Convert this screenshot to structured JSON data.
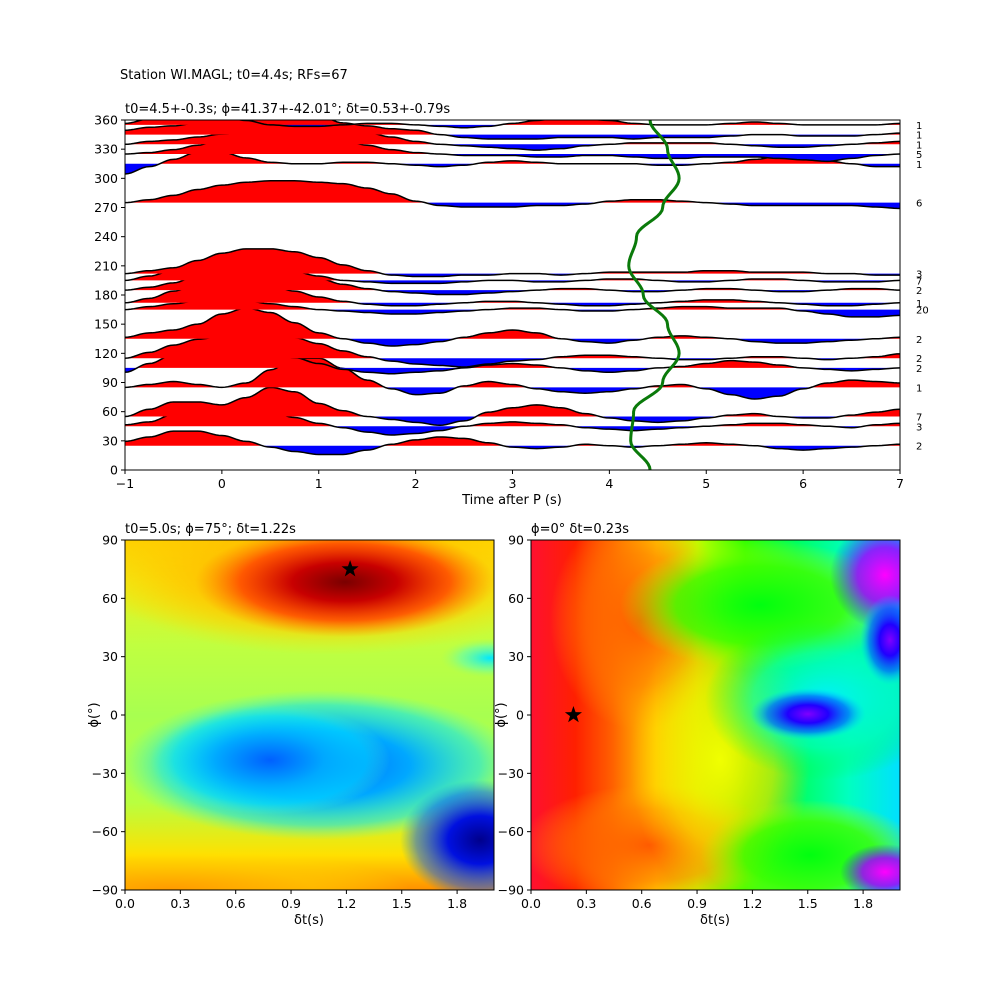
{
  "figure": {
    "suptitle": "Station WI.MAGL; t0=4.4s; RFs=67"
  },
  "chart_data": [
    {
      "type": "line",
      "title": "t0=4.5+-0.3s; ϕ=41.37+-42.01°; δt=0.53+-0.79s",
      "xlabel": "Time after P (s)",
      "ylabel": "",
      "xlim": [
        -1,
        7
      ],
      "ylim": [
        0,
        360
      ],
      "xticks": [
        "−1",
        "0",
        "1",
        "2",
        "3",
        "4",
        "5",
        "6",
        "7"
      ],
      "yticks": [
        "0",
        "30",
        "60",
        "90",
        "120",
        "150",
        "180",
        "210",
        "240",
        "270",
        "300",
        "330",
        "360"
      ],
      "fill_positive_color": "#ff0000",
      "fill_negative_color": "#0000ff",
      "trace_color": "#000000",
      "curve_color": "#0a7a0a",
      "traces": [
        {
          "baz": 25,
          "count": "2",
          "amp": [
            0.3,
            0.6,
            1.0,
            1.0,
            0.7,
            0.3,
            -0.1,
            -0.4,
            -0.6,
            -0.6,
            -0.3,
            0.1,
            0.4,
            0.6,
            0.5,
            0.2,
            -0.1,
            -0.2,
            -0.1,
            0.1,
            0.0,
            -0.1,
            0.0,
            0.1,
            0.2,
            0.1,
            0.0,
            -0.2,
            -0.3,
            -0.2,
            -0.1,
            0.0,
            0.1
          ]
        },
        {
          "baz": 45,
          "count": "3",
          "amp": [
            0.1,
            0.3,
            0.8,
            1.1,
            1.2,
            1.2,
            1.0,
            0.6,
            0.2,
            -0.1,
            -0.4,
            -0.6,
            -0.5,
            -0.3,
            0.0,
            0.2,
            0.3,
            0.2,
            0.1,
            -0.1,
            -0.2,
            -0.3,
            -0.2,
            -0.1,
            0.0,
            0.1,
            0.2,
            0.2,
            0.1,
            0.0,
            -0.1,
            0.1,
            0.2
          ]
        },
        {
          "baz": 55,
          "count": "7",
          "amp": [
            0.0,
            0.5,
            1.0,
            1.0,
            0.8,
            1.3,
            2.0,
            1.7,
            0.9,
            0.4,
            0.0,
            -0.2,
            -0.4,
            -0.6,
            -0.3,
            0.3,
            0.6,
            0.8,
            0.6,
            0.2,
            -0.1,
            -0.3,
            -0.4,
            -0.3,
            -0.1,
            0.1,
            0.2,
            0.0,
            -0.1,
            -0.1,
            0.1,
            0.3,
            0.5
          ]
        },
        {
          "baz": 85,
          "count": "1",
          "amp": [
            0.0,
            0.2,
            0.4,
            0.2,
            0.0,
            0.3,
            1.2,
            2.0,
            2.0,
            1.3,
            0.5,
            -0.1,
            -0.5,
            -0.4,
            0.1,
            0.4,
            0.2,
            -0.1,
            -0.3,
            -0.4,
            -0.3,
            -0.1,
            0.1,
            0.2,
            -0.1,
            -0.5,
            -0.8,
            -0.6,
            -0.1,
            0.3,
            0.5,
            0.4,
            0.3
          ]
        },
        {
          "baz": 105,
          "count": "2",
          "amp": [
            -0.3,
            0.3,
            0.9,
            1.4,
            1.5,
            1.4,
            1.1,
            0.7,
            0.3,
            -0.1,
            -0.3,
            -0.4,
            -0.3,
            -0.2,
            0.0,
            0.2,
            0.3,
            0.2,
            0.0,
            -0.2,
            -0.3,
            -0.2,
            0.0,
            0.1,
            0.3,
            0.5,
            0.4,
            0.2,
            0.0,
            -0.1,
            -0.2,
            -0.1,
            0.0
          ]
        },
        {
          "baz": 115,
          "count": "2",
          "amp": [
            0.0,
            0.4,
            0.9,
            1.3,
            1.5,
            1.6,
            1.6,
            1.4,
            1.0,
            0.5,
            0.1,
            -0.2,
            -0.4,
            -0.5,
            -0.6,
            -0.4,
            -0.2,
            -0.1,
            0.1,
            0.2,
            0.2,
            0.1,
            0.0,
            -0.1,
            -0.1,
            0.0,
            0.1,
            0.1,
            0.0,
            -0.1,
            0.0,
            0.1,
            0.3
          ]
        },
        {
          "baz": 135,
          "count": "2",
          "amp": [
            0.1,
            0.4,
            0.6,
            1.0,
            1.7,
            2.1,
            1.8,
            1.1,
            0.4,
            0.0,
            -0.3,
            -0.5,
            -0.4,
            -0.2,
            0.1,
            0.4,
            0.6,
            0.4,
            0.0,
            -0.2,
            -0.3,
            -0.1,
            0.1,
            0.2,
            0.1,
            0.0,
            -0.2,
            -0.3,
            -0.3,
            -0.2,
            -0.1,
            0.0,
            0.1
          ]
        },
        {
          "baz": 165,
          "count": "20",
          "amp": [
            0.0,
            0.2,
            0.4,
            0.6,
            0.7,
            0.6,
            0.4,
            0.2,
            0.0,
            -0.1,
            -0.2,
            -0.3,
            -0.3,
            -0.2,
            -0.1,
            0.0,
            0.1,
            0.1,
            0.0,
            -0.1,
            -0.1,
            0.0,
            0.1,
            0.2,
            0.2,
            0.1,
            0.1,
            0.1,
            -0.1,
            -0.3,
            -0.5,
            -0.5,
            -0.4
          ]
        },
        {
          "baz": 172,
          "count": "1",
          "amp": [
            0.0,
            0.3,
            0.8,
            1.3,
            1.6,
            1.5,
            1.2,
            0.8,
            0.4,
            0.1,
            -0.1,
            -0.2,
            -0.2,
            -0.1,
            0.0,
            0.1,
            0.1,
            0.0,
            -0.1,
            -0.2,
            -0.2,
            -0.1,
            0.0,
            0.1,
            0.2,
            0.2,
            0.1,
            0.0,
            -0.1,
            -0.2,
            -0.2,
            -0.1,
            0.0
          ]
        },
        {
          "baz": 185,
          "count": "2",
          "amp": [
            0.0,
            0.2,
            0.5,
            1.0,
            1.4,
            1.6,
            1.5,
            1.2,
            0.8,
            0.4,
            0.1,
            -0.1,
            -0.2,
            -0.3,
            -0.3,
            -0.2,
            -0.1,
            0.0,
            0.1,
            0.1,
            0.0,
            -0.1,
            -0.1,
            0.0,
            0.1,
            0.1,
            0.0,
            -0.1,
            -0.1,
            0.0,
            0.1,
            0.1,
            0.0
          ]
        },
        {
          "baz": 195,
          "count": "7",
          "amp": [
            0.0,
            0.3,
            0.7,
            1.1,
            1.4,
            1.3,
            1.0,
            0.6,
            0.3,
            0.0,
            -0.1,
            -0.2,
            -0.2,
            -0.2,
            -0.1,
            0.0,
            0.0,
            -0.1,
            -0.1,
            0.0,
            0.1,
            0.1,
            0.0,
            -0.1,
            -0.1,
            0.0,
            0.1,
            0.1,
            0.0,
            -0.1,
            -0.1,
            -0.1,
            0.0
          ]
        },
        {
          "baz": 202,
          "count": "3",
          "amp": [
            0.0,
            0.2,
            0.4,
            0.9,
            1.4,
            1.7,
            1.7,
            1.5,
            1.1,
            0.6,
            0.2,
            -0.1,
            -0.2,
            -0.2,
            -0.1,
            -0.1,
            0.0,
            0.0,
            -0.1,
            0.0,
            0.1,
            0.1,
            0.1,
            0.1,
            0.2,
            0.2,
            0.1,
            0.1,
            0.1,
            0.0,
            0.0,
            -0.1,
            -0.1
          ]
        },
        {
          "baz": 275,
          "count": "6",
          "amp": [
            0.0,
            0.2,
            0.5,
            0.9,
            1.2,
            1.4,
            1.5,
            1.5,
            1.4,
            1.3,
            1.0,
            0.6,
            0.1,
            -0.2,
            -0.3,
            -0.3,
            -0.3,
            -0.2,
            -0.2,
            -0.1,
            0.1,
            0.2,
            0.2,
            0.1,
            0.0,
            -0.1,
            -0.2,
            -0.2,
            -0.2,
            -0.2,
            -0.2,
            -0.3,
            -0.4
          ]
        },
        {
          "baz": 315,
          "count": "1",
          "amp": [
            -0.7,
            -0.2,
            0.3,
            0.8,
            0.8,
            0.4,
            0.1,
            0.0,
            0.0,
            0.1,
            0.1,
            0.0,
            -0.1,
            -0.2,
            -0.1,
            0.1,
            0.2,
            0.1,
            0.0,
            0.0,
            0.0,
            0.0,
            -0.1,
            -0.1,
            0.0,
            0.1,
            0.3,
            0.5,
            0.4,
            0.2,
            0.0,
            -0.2,
            -0.2
          ]
        },
        {
          "baz": 325,
          "count": "5",
          "amp": [
            0.0,
            0.1,
            0.3,
            0.6,
            1.1,
            1.6,
            2.0,
            1.8,
            1.4,
            1.0,
            0.6,
            0.3,
            0.1,
            0.0,
            -0.1,
            -0.1,
            -0.1,
            -0.2,
            -0.2,
            -0.1,
            -0.1,
            -0.2,
            -0.3,
            -0.3,
            -0.2,
            -0.2,
            -0.2,
            -0.3,
            -0.4,
            -0.5,
            -0.3,
            -0.1,
            0.0
          ]
        },
        {
          "baz": 335,
          "count": "1",
          "amp": [
            0.0,
            0.2,
            0.3,
            0.5,
            0.7,
            0.8,
            0.9,
            1.0,
            1.1,
            1.0,
            0.8,
            0.5,
            0.2,
            0.0,
            -0.1,
            -0.2,
            -0.3,
            -0.4,
            -0.3,
            -0.1,
            0.0,
            0.1,
            0.1,
            0.1,
            0.1,
            0.0,
            -0.1,
            -0.2,
            -0.2,
            -0.1,
            0.0,
            0.1,
            0.2
          ]
        },
        {
          "baz": 345,
          "count": "1",
          "amp": [
            0.3,
            0.5,
            0.6,
            0.8,
            1.3,
            1.9,
            2.2,
            1.9,
            1.3,
            0.8,
            0.6,
            0.4,
            0.3,
            0.0,
            -0.2,
            -0.3,
            -0.3,
            -0.3,
            -0.2,
            -0.2,
            -0.2,
            -0.3,
            -0.2,
            -0.2,
            -0.2,
            -0.1,
            0.0,
            0.0,
            -0.1,
            -0.1,
            -0.1,
            0.0,
            0.1
          ]
        },
        {
          "baz": 355,
          "count": "1",
          "amp": [
            0.1,
            0.4,
            0.7,
            0.8,
            0.6,
            0.3,
            0.0,
            -0.1,
            -0.1,
            0.0,
            0.1,
            0.1,
            0.0,
            -0.1,
            -0.2,
            -0.1,
            0.1,
            0.3,
            0.5,
            0.4,
            0.3,
            0.1,
            0.0,
            0.0,
            0.0,
            0.1,
            0.2,
            0.1,
            0.0,
            0.0,
            0.0,
            0.0,
            0.1
          ]
        }
      ],
      "green_curve": {
        "baz": [
          0,
          30,
          60,
          90,
          120,
          150,
          180,
          210,
          240,
          270,
          300,
          330,
          360
        ],
        "time": [
          4.42,
          4.22,
          4.25,
          4.55,
          4.72,
          4.6,
          4.35,
          4.2,
          4.28,
          4.55,
          4.72,
          4.6,
          4.42
        ]
      }
    },
    {
      "type": "heatmap",
      "title": "t0=5.0s; ϕ=75°; δt=1.22s",
      "xlabel": "δt(s)",
      "ylabel": "ϕ(°)",
      "xlim": [
        0,
        2
      ],
      "ylim": [
        -90,
        90
      ],
      "xticks": [
        "0.0",
        "0.3",
        "0.6",
        "0.9",
        "1.2",
        "1.5",
        "1.8"
      ],
      "yticks": [
        "−90",
        "−60",
        "−30",
        "0",
        "30",
        "60",
        "90"
      ],
      "colormap": "jet",
      "star": {
        "dt": 1.22,
        "phi": 75
      }
    },
    {
      "type": "heatmap",
      "title": "ϕ=0° δt=0.23s",
      "xlabel": "δt(s)",
      "ylabel": "ϕ(°)",
      "xlim": [
        0,
        2
      ],
      "ylim": [
        -90,
        90
      ],
      "xticks": [
        "0.0",
        "0.3",
        "0.6",
        "0.9",
        "1.2",
        "1.5",
        "1.8"
      ],
      "yticks": [
        "−90",
        "−60",
        "−30",
        "0",
        "30",
        "60",
        "90"
      ],
      "colormap": "hsv",
      "star": {
        "dt": 0.23,
        "phi": 0
      }
    }
  ]
}
